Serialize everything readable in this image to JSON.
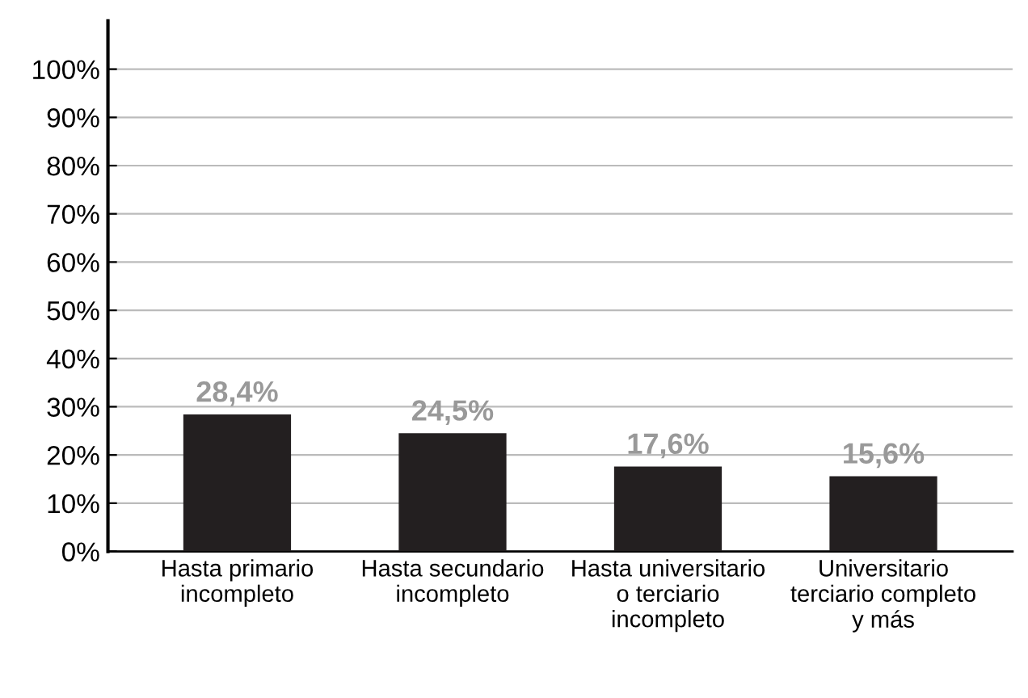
{
  "chart_data": {
    "type": "bar",
    "categories": [
      "Hasta primario\nincompleto",
      "Hasta secundario\nincompleto",
      "Hasta universitario\no terciario\nincompleto",
      "Universitario\nterciario completo\ny más"
    ],
    "values": [
      28.4,
      24.5,
      17.6,
      15.6
    ],
    "value_labels": [
      "28,4%",
      "24,5%",
      "17,6%",
      "15,6%"
    ],
    "color": "#231f20",
    "ylim": [
      0,
      110
    ],
    "yticks": [
      {
        "value": 0,
        "label": "0%"
      },
      {
        "value": 10,
        "label": "10%"
      },
      {
        "value": 20,
        "label": "20%"
      },
      {
        "value": 30,
        "label": "30%"
      },
      {
        "value": 40,
        "label": "40%"
      },
      {
        "value": 50,
        "label": "50%"
      },
      {
        "value": 60,
        "label": "60%"
      },
      {
        "value": 70,
        "label": "70%"
      },
      {
        "value": 80,
        "label": "80%"
      },
      {
        "value": 90,
        "label": "90%"
      },
      {
        "value": 100,
        "label": "100%"
      }
    ],
    "grid": "y",
    "legend": false
  }
}
